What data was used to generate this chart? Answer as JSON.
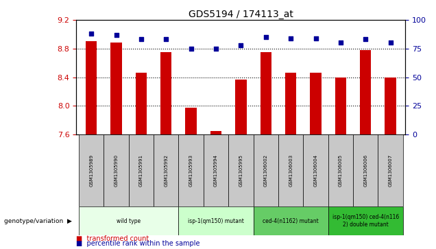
{
  "title": "GDS5194 / 174113_at",
  "samples": [
    "GSM1305989",
    "GSM1305990",
    "GSM1305991",
    "GSM1305992",
    "GSM1305993",
    "GSM1305994",
    "GSM1305995",
    "GSM1306002",
    "GSM1306003",
    "GSM1306004",
    "GSM1306005",
    "GSM1306006",
    "GSM1306007"
  ],
  "transformed_count": [
    8.9,
    8.88,
    8.46,
    8.75,
    7.97,
    7.65,
    8.37,
    8.75,
    8.46,
    8.46,
    8.4,
    8.78,
    8.4
  ],
  "percentile_rank": [
    88,
    87,
    83,
    83,
    75,
    75,
    78,
    85,
    84,
    84,
    80,
    83,
    80
  ],
  "ylim_left": [
    7.6,
    9.2
  ],
  "ylim_right": [
    0,
    100
  ],
  "yticks_left": [
    7.6,
    8.0,
    8.4,
    8.8,
    9.2
  ],
  "yticks_right": [
    0,
    25,
    50,
    75,
    100
  ],
  "hlines": [
    8.0,
    8.4,
    8.8
  ],
  "bar_color": "#cc0000",
  "dot_color": "#000099",
  "bar_bottom": 7.6,
  "groups": [
    {
      "label": "wild type",
      "indices": [
        0,
        1,
        2,
        3
      ],
      "color": "#e8ffe8"
    },
    {
      "label": "isp-1(qm150) mutant",
      "indices": [
        4,
        5,
        6
      ],
      "color": "#ccffcc"
    },
    {
      "label": "ced-4(n1162) mutant",
      "indices": [
        7,
        8,
        9
      ],
      "color": "#66cc66"
    },
    {
      "label": "isp-1(qm150) ced-4(n116\n2) double mutant",
      "indices": [
        10,
        11,
        12
      ],
      "color": "#33bb33"
    }
  ],
  "legend_items": [
    {
      "label": "transformed count",
      "color": "#cc0000"
    },
    {
      "label": "percentile rank within the sample",
      "color": "#000099"
    }
  ],
  "genotype_label": "genotype/variation",
  "left_axis_color": "#cc0000",
  "right_axis_color": "#000099",
  "gsm_bg_color": "#c8c8c8",
  "bar_width": 0.45
}
